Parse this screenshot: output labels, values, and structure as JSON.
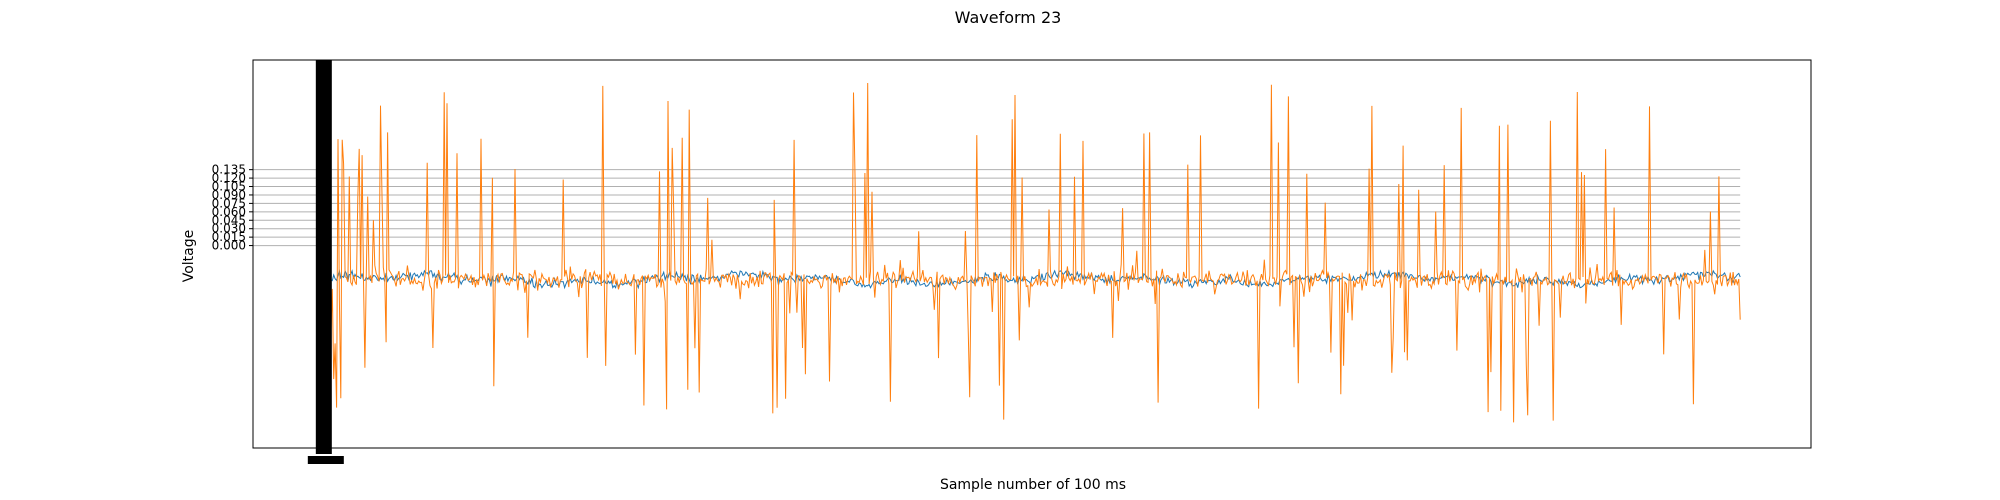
{
  "chart_data": {
    "type": "line",
    "title": "Waveform 23",
    "xlabel": "Sample number of 100 ms",
    "ylabel": "Voltage",
    "y_ticks": [
      "0.000",
      "0.015",
      "0.030",
      "0.045",
      "0.060",
      "0.075",
      "0.090",
      "0.105",
      "0.120",
      "0.135"
    ],
    "y_tick_values": [
      0,
      0.015,
      0.03,
      0.045,
      0.06,
      0.075,
      0.09,
      0.105,
      0.12,
      0.135
    ],
    "ylim": [
      -0.36,
      0.33
    ],
    "xlim": [
      -50,
      1050
    ],
    "x_range": [
      0,
      1000
    ],
    "grid": true,
    "legend": "none",
    "colors": {
      "series_1": "#1f77b4",
      "series_2": "#ff7f0e"
    },
    "series": [
      {
        "sampled": "true",
        "values_summary": {
          "baseline": -0.06,
          "band": [
            -0.075,
            -0.045
          ]
        }
      },
      {
        "sampled": "true",
        "values_summary": {
          "baseline": -0.06,
          "min": -0.32,
          "max": 0.29
        }
      }
    ]
  }
}
